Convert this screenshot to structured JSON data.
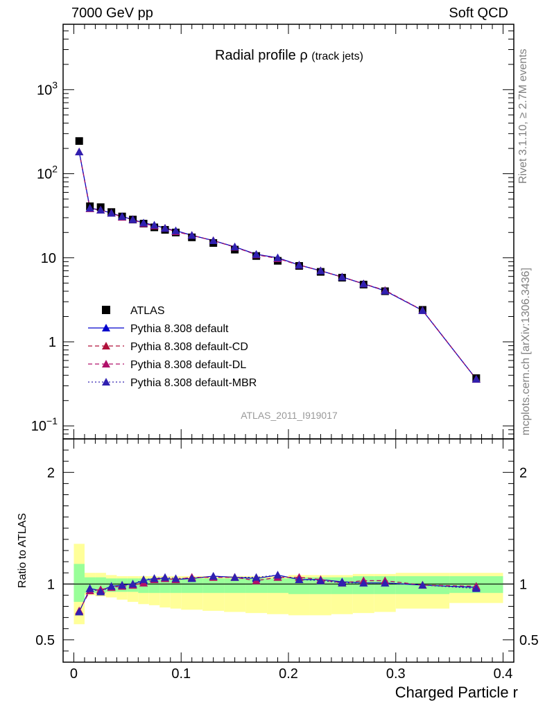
{
  "header": {
    "left": "7000 GeV pp",
    "right": "Soft QCD"
  },
  "side_labels": {
    "rivet": "Rivet 3.1.10, ≥ 2.7M events",
    "site": "mcplots.cern.ch [arXiv:1306.3436]"
  },
  "chart_data": [
    {
      "type": "scatter",
      "title": "Radial profile ρ",
      "title_suffix": "(track jets)",
      "analysis_label": "ATLAS_2011_I919017",
      "yscale": "log",
      "ylim": [
        0.07,
        6000
      ],
      "xlim": [
        -0.01,
        0.41
      ],
      "y_tick_labels": [
        "10⁻¹",
        "1",
        "10",
        "10²",
        "10³"
      ],
      "y_tick_values": [
        0.1,
        1,
        10,
        100,
        1000
      ],
      "legend": "center-left",
      "x": [
        0.005,
        0.015,
        0.025,
        0.035,
        0.045,
        0.055,
        0.065,
        0.075,
        0.085,
        0.095,
        0.11,
        0.13,
        0.15,
        0.17,
        0.19,
        0.21,
        0.23,
        0.25,
        0.27,
        0.29,
        0.325,
        0.375
      ],
      "series": [
        {
          "name": "ATLAS",
          "color": "#000000",
          "marker": "square",
          "line": "none",
          "values": [
            245,
            41,
            40,
            35,
            31,
            28.5,
            25.5,
            23,
            21.5,
            20,
            17.5,
            15,
            12.5,
            10.5,
            9.2,
            8,
            6.8,
            5.8,
            4.8,
            4.0,
            2.4,
            0.37
          ]
        },
        {
          "name": "Pythia 8.308 default",
          "color": "#0000cc",
          "marker": "triangle",
          "line": "solid",
          "values": [
            182,
            39,
            37,
            34,
            31,
            28.5,
            26,
            24.5,
            22.5,
            21,
            18.5,
            16,
            13.5,
            11,
            10,
            8.2,
            7,
            5.9,
            4.9,
            4.05,
            2.36,
            0.36
          ]
        },
        {
          "name": "Pythia 8.308 default-CD",
          "color": "#b0103a",
          "marker": "triangle",
          "line": "dashed",
          "values": [
            182,
            38.5,
            37,
            34,
            30.5,
            28.5,
            25.5,
            24,
            22.5,
            20.5,
            18.5,
            16,
            13.4,
            10.9,
            9.8,
            8.2,
            7,
            5.9,
            4.9,
            4.1,
            2.37,
            0.36
          ]
        },
        {
          "name": "Pythia 8.308 default-DL",
          "color": "#b0106a",
          "marker": "triangle",
          "line": "dashed",
          "values": [
            182,
            38.5,
            37,
            34,
            30.5,
            28.5,
            25.5,
            24,
            22.5,
            20.5,
            18.5,
            16,
            13.4,
            10.9,
            9.8,
            8.2,
            7,
            5.9,
            4.9,
            4.1,
            2.37,
            0.36
          ]
        },
        {
          "name": "Pythia 8.308 default-MBR",
          "color": "#3020b0",
          "marker": "triangle",
          "line": "dotted",
          "values": [
            182,
            39,
            37,
            34,
            31,
            28.5,
            26,
            24.5,
            22.5,
            21,
            18.5,
            16,
            13.5,
            11,
            10,
            8.2,
            7,
            5.9,
            4.9,
            4.05,
            2.36,
            0.36
          ]
        }
      ]
    },
    {
      "type": "scatter",
      "ylabel": "Ratio to ATLAS",
      "xlabel": "Charged Particle r",
      "ylim": [
        0.3,
        2.3
      ],
      "xlim": [
        -0.01,
        0.41
      ],
      "y_tick_labels": [
        "0.5",
        "1",
        "2"
      ],
      "y_tick_values": [
        0.5,
        1,
        2
      ],
      "x_tick_labels": [
        "0",
        "0.1",
        "0.2",
        "0.3",
        "0.4"
      ],
      "x_tick_values": [
        0,
        0.1,
        0.2,
        0.3,
        0.4
      ],
      "uncertainty_bands": [
        {
          "kind": "statistical",
          "color": "#99ff99"
        },
        {
          "kind": "total",
          "color": "#ffff99"
        }
      ],
      "bins": [
        {
          "lo": 0.0,
          "hi": 0.01,
          "inner": [
            0.84,
            1.18
          ],
          "outer": [
            0.64,
            1.36
          ]
        },
        {
          "lo": 0.01,
          "hi": 0.02,
          "inner": [
            0.92,
            1.06
          ],
          "outer": [
            0.9,
            1.1
          ]
        },
        {
          "lo": 0.02,
          "hi": 0.03,
          "inner": [
            0.92,
            1.06
          ],
          "outer": [
            0.89,
            1.1
          ]
        },
        {
          "lo": 0.03,
          "hi": 0.04,
          "inner": [
            0.93,
            1.05
          ],
          "outer": [
            0.88,
            1.08
          ]
        },
        {
          "lo": 0.04,
          "hi": 0.05,
          "inner": [
            0.93,
            1.05
          ],
          "outer": [
            0.86,
            1.07
          ]
        },
        {
          "lo": 0.05,
          "hi": 0.06,
          "inner": [
            0.93,
            1.05
          ],
          "outer": [
            0.84,
            1.07
          ]
        },
        {
          "lo": 0.06,
          "hi": 0.07,
          "inner": [
            0.92,
            1.05
          ],
          "outer": [
            0.82,
            1.07
          ]
        },
        {
          "lo": 0.07,
          "hi": 0.08,
          "inner": [
            0.92,
            1.05
          ],
          "outer": [
            0.81,
            1.07
          ]
        },
        {
          "lo": 0.08,
          "hi": 0.09,
          "inner": [
            0.92,
            1.05
          ],
          "outer": [
            0.79,
            1.07
          ]
        },
        {
          "lo": 0.09,
          "hi": 0.1,
          "inner": [
            0.92,
            1.05
          ],
          "outer": [
            0.78,
            1.07
          ]
        },
        {
          "lo": 0.1,
          "hi": 0.12,
          "inner": [
            0.92,
            1.05
          ],
          "outer": [
            0.77,
            1.07
          ]
        },
        {
          "lo": 0.12,
          "hi": 0.14,
          "inner": [
            0.92,
            1.05
          ],
          "outer": [
            0.76,
            1.07
          ]
        },
        {
          "lo": 0.14,
          "hi": 0.16,
          "inner": [
            0.92,
            1.05
          ],
          "outer": [
            0.75,
            1.07
          ]
        },
        {
          "lo": 0.16,
          "hi": 0.18,
          "inner": [
            0.92,
            1.05
          ],
          "outer": [
            0.74,
            1.07
          ]
        },
        {
          "lo": 0.18,
          "hi": 0.2,
          "inner": [
            0.92,
            1.05
          ],
          "outer": [
            0.73,
            1.07
          ]
        },
        {
          "lo": 0.2,
          "hi": 0.22,
          "inner": [
            0.91,
            1.06
          ],
          "outer": [
            0.72,
            1.08
          ]
        },
        {
          "lo": 0.22,
          "hi": 0.24,
          "inner": [
            0.91,
            1.06
          ],
          "outer": [
            0.72,
            1.08
          ]
        },
        {
          "lo": 0.24,
          "hi": 0.26,
          "inner": [
            0.91,
            1.06
          ],
          "outer": [
            0.73,
            1.08
          ]
        },
        {
          "lo": 0.26,
          "hi": 0.28,
          "inner": [
            0.91,
            1.07
          ],
          "outer": [
            0.74,
            1.09
          ]
        },
        {
          "lo": 0.28,
          "hi": 0.3,
          "inner": [
            0.91,
            1.07
          ],
          "outer": [
            0.75,
            1.09
          ]
        },
        {
          "lo": 0.3,
          "hi": 0.35,
          "inner": [
            0.91,
            1.07
          ],
          "outer": [
            0.78,
            1.1
          ]
        },
        {
          "lo": 0.35,
          "hi": 0.4,
          "inner": [
            0.92,
            1.07
          ],
          "outer": [
            0.83,
            1.1
          ]
        }
      ],
      "series": [
        {
          "name": "Pythia 8.308 default",
          "color": "#0000cc",
          "line": "solid",
          "values": [
            0.75,
            0.96,
            0.94,
            0.98,
            0.99,
            1.0,
            1.03,
            1.05,
            1.05,
            1.04,
            1.05,
            1.07,
            1.06,
            1.05,
            1.08,
            1.04,
            1.04,
            1.02,
            1.01,
            1.01,
            0.99,
            0.97
          ]
        },
        {
          "name": "Pythia 8.308 default-CD",
          "color": "#b0103a",
          "line": "dashed",
          "values": [
            0.76,
            0.94,
            0.95,
            0.97,
            0.98,
            0.99,
            1.01,
            1.04,
            1.05,
            1.04,
            1.06,
            1.06,
            1.06,
            1.03,
            1.06,
            1.06,
            1.04,
            1.01,
            1.03,
            1.03,
            0.99,
            0.98
          ]
        },
        {
          "name": "Pythia 8.308 default-DL",
          "color": "#b0106a",
          "line": "dashed",
          "values": [
            0.76,
            0.94,
            0.95,
            0.97,
            0.98,
            0.99,
            1.01,
            1.04,
            1.05,
            1.04,
            1.06,
            1.06,
            1.06,
            1.03,
            1.06,
            1.06,
            1.04,
            1.01,
            1.03,
            1.03,
            0.99,
            0.98
          ]
        },
        {
          "name": "Pythia 8.308 default-MBR",
          "color": "#3020b0",
          "line": "dotted",
          "values": [
            0.75,
            0.96,
            0.93,
            0.98,
            0.99,
            1.0,
            1.04,
            1.05,
            1.06,
            1.05,
            1.05,
            1.07,
            1.06,
            1.06,
            1.08,
            1.04,
            1.03,
            1.01,
            1.01,
            1.01,
            0.99,
            0.96
          ]
        }
      ]
    }
  ]
}
